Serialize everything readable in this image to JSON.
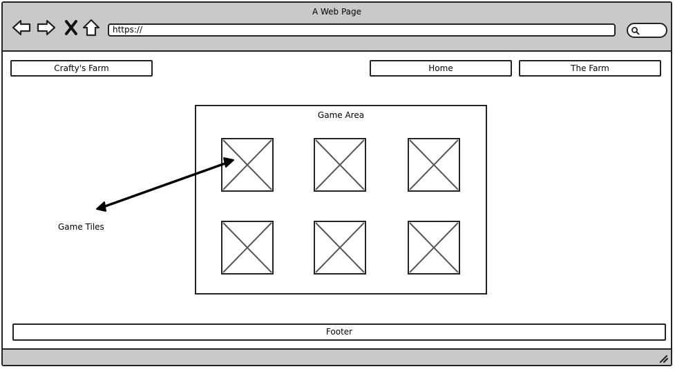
{
  "window": {
    "title": "A Web Page",
    "url": "https://"
  },
  "toolbar": {
    "icons": [
      "back-arrow-icon",
      "forward-arrow-icon",
      "close-icon",
      "home-icon",
      "search-icon"
    ]
  },
  "header": {
    "logo_label": "Crafty's Farm",
    "nav": [
      {
        "label": "Home"
      },
      {
        "label": "The Farm"
      }
    ]
  },
  "main": {
    "game_area_title": "Game Area",
    "tile_count": 6,
    "callout_label": "Game Tiles"
  },
  "footer": {
    "label": "Footer"
  },
  "colors": {
    "chrome": "#c9c9c9",
    "stroke": "#222222",
    "placeholder_stroke": "#555555"
  }
}
